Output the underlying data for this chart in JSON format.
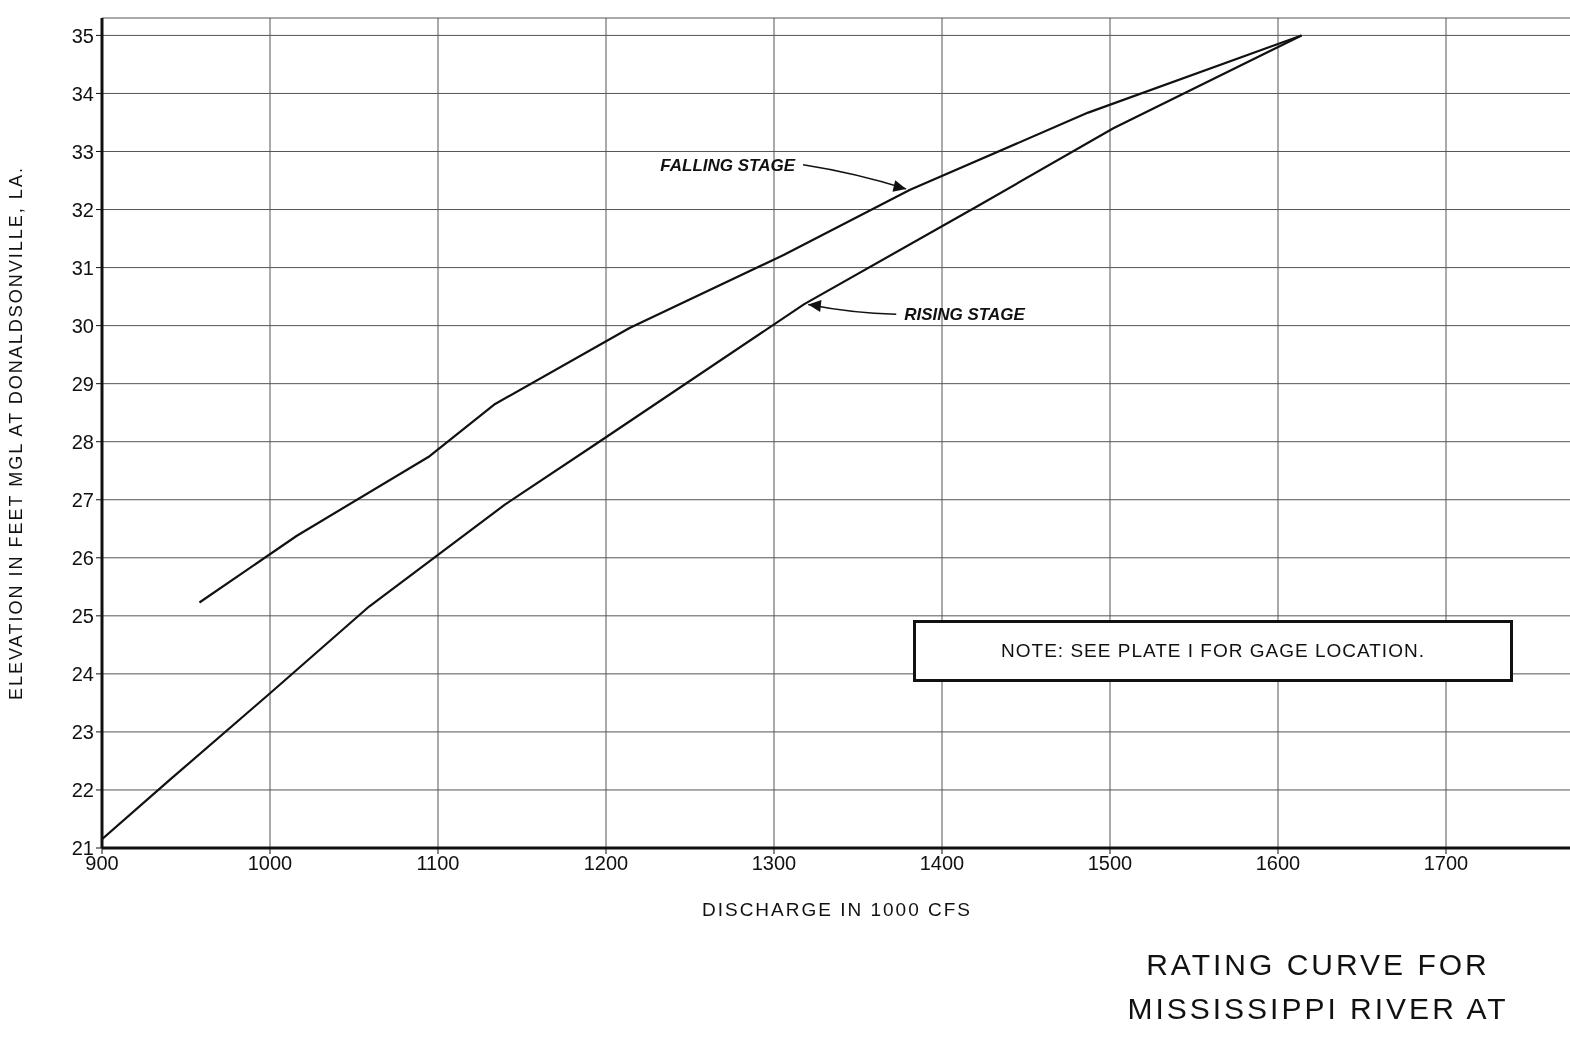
{
  "chart_data": {
    "type": "line",
    "title": "RATING CURVE FOR MISSISSIPPI RIVER AT",
    "xlabel": "DISCHARGE IN 1000 CFS",
    "ylabel": "ELEVATION IN FEET MGL AT DONALDSONVILLE, LA.",
    "xlim": [
      900,
      1775
    ],
    "ylim": [
      21,
      35.3
    ],
    "xticks": [
      900,
      1000,
      1100,
      1200,
      1300,
      1400,
      1500,
      1600,
      1700
    ],
    "yticks": [
      21,
      22,
      23,
      24,
      25,
      26,
      27,
      28,
      29,
      30,
      31,
      32,
      33,
      34,
      35
    ],
    "grid": true,
    "marker": "none",
    "line_style": "solid",
    "series": [
      {
        "color": "#111111",
        "x": [
          958,
          1016,
          1095,
          1134,
          1214,
          1306,
          1381,
          1487,
          1614
        ],
        "values": [
          25.23,
          26.38,
          27.75,
          28.65,
          29.96,
          31.22,
          32.34,
          33.67,
          35.0
        ]
      },
      {
        "color": "#111111",
        "x": [
          900,
          941,
          999,
          1059,
          1140,
          1194,
          1318,
          1420,
          1502,
          1614
        ],
        "values": [
          21.15,
          22.19,
          23.64,
          25.16,
          26.92,
          27.96,
          30.37,
          32.04,
          33.4,
          35.0
        ]
      }
    ],
    "annotations": [
      {
        "text": "FALLING STAGE",
        "x": 1381,
        "y": 32.34
      },
      {
        "text": "RISING STAGE",
        "x": 1318,
        "y": 30.37
      },
      "NOTE: SEE PLATE I FOR GAGE LOCATION."
    ]
  }
}
